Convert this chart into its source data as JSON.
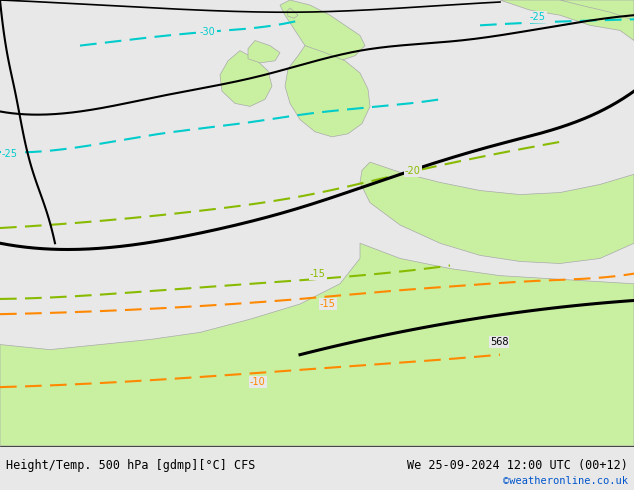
{
  "title_left": "Height/Temp. 500 hPa [gdmp][°C] CFS",
  "title_right": "We 25-09-2024 12:00 UTC (00+12)",
  "watermark": "©weatheronline.co.uk",
  "bg_color": "#e8e8e8",
  "land_color": "#c8f0a0",
  "border_color": "#aaaaaa",
  "text_color_cyan": "#00cccc",
  "text_color_green": "#88bb00",
  "text_color_orange": "#ff8800",
  "text_color_black": "#000000",
  "text_color_blue": "#0055cc",
  "figsize": [
    6.34,
    4.9
  ],
  "dpi": 100
}
